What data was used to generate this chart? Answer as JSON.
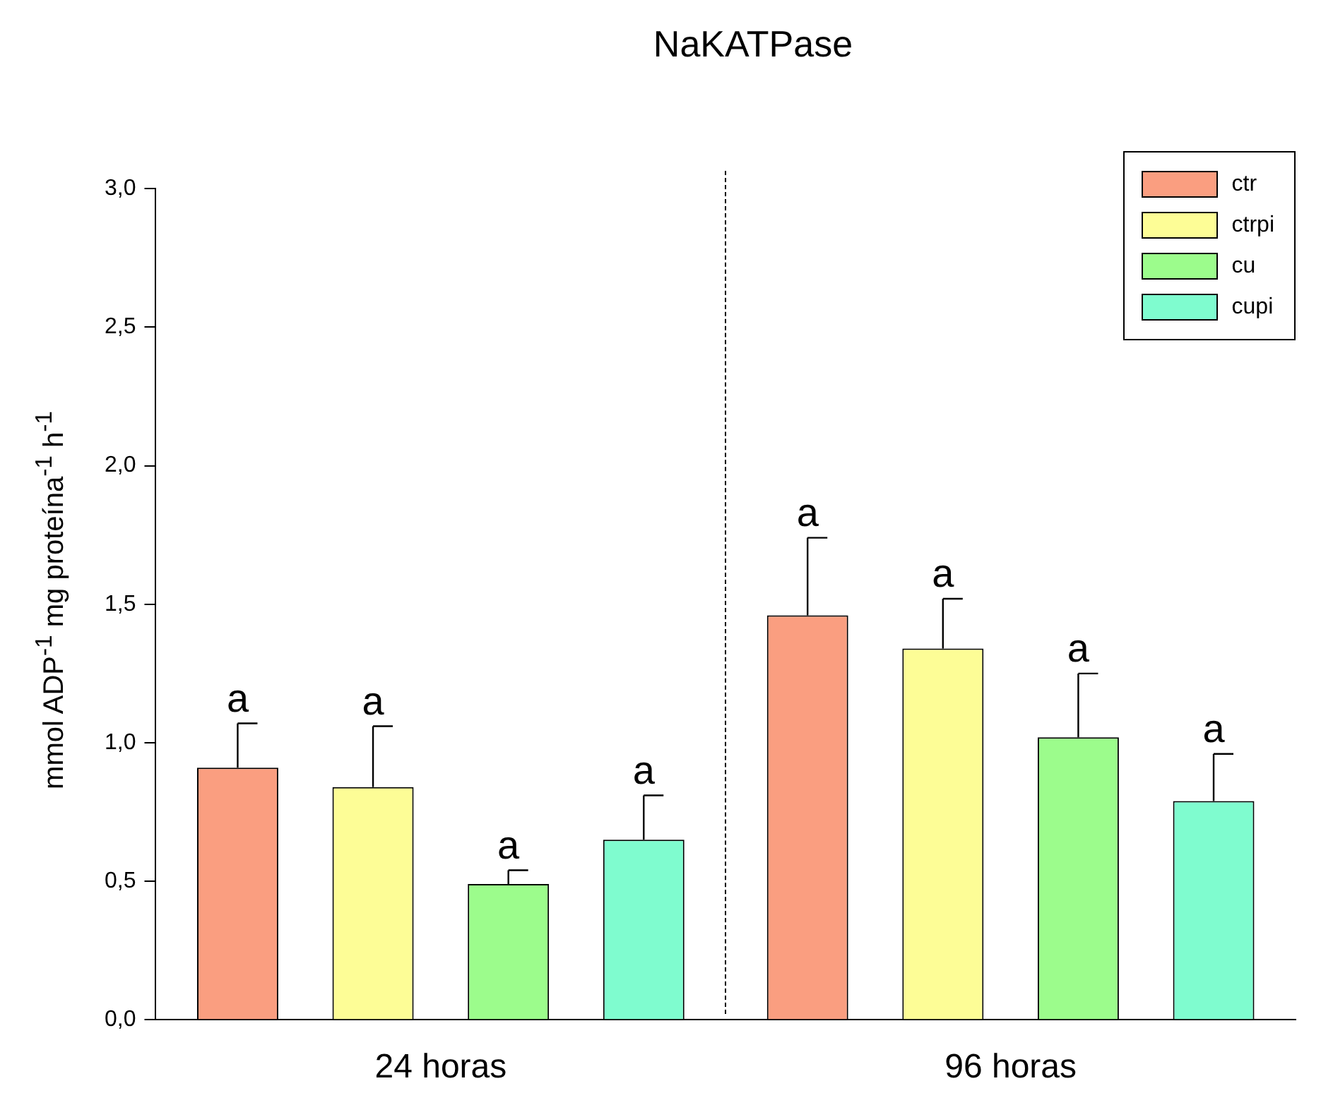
{
  "chart_data": {
    "type": "bar",
    "title": "NaKATPase",
    "ylabel": "mmol ADP$^{-1}$ mg proteína$^{-1}$ h$^{-1}$",
    "categories": [
      "24 horas",
      "96 horas"
    ],
    "series": [
      {
        "name": "ctr",
        "color": "#fa9e80",
        "values": [
          0.91,
          1.46
        ],
        "errors": [
          [
            0.91,
            1.07
          ],
          [
            1.46,
            1.74
          ]
        ],
        "value_labels": [
          "a",
          "a"
        ]
      },
      {
        "name": "ctrpi",
        "color": "#fdfd96",
        "values": [
          0.84,
          1.34
        ],
        "errors": [
          [
            0.84,
            1.06
          ],
          [
            1.34,
            1.52
          ]
        ],
        "value_labels": [
          "a",
          "a"
        ]
      },
      {
        "name": "cu",
        "color": "#9cfc8c",
        "values": [
          0.49,
          1.02
        ],
        "errors": [
          [
            0.49,
            0.54
          ],
          [
            1.02,
            1.25
          ]
        ],
        "value_labels": [
          "a",
          "a"
        ]
      },
      {
        "name": "cupi",
        "color": "#7ffccf",
        "values": [
          0.65,
          0.79
        ],
        "errors": [
          [
            0.65,
            0.81
          ],
          [
            0.79,
            0.96
          ]
        ],
        "value_labels": [
          "a",
          "a"
        ]
      }
    ],
    "ylim": [
      0,
      3
    ],
    "yticks": [
      {
        "value": 0,
        "label": "0,0"
      },
      {
        "value": 0.5,
        "label": "0,5"
      },
      {
        "value": 1,
        "label": "1,0"
      },
      {
        "value": 1.5,
        "label": "1,5"
      },
      {
        "value": 2,
        "label": "2,0"
      },
      {
        "value": 2.5,
        "label": "2,5"
      },
      {
        "value": 3,
        "label": "3,0"
      }
    ],
    "grid": false,
    "legend": "top right"
  }
}
